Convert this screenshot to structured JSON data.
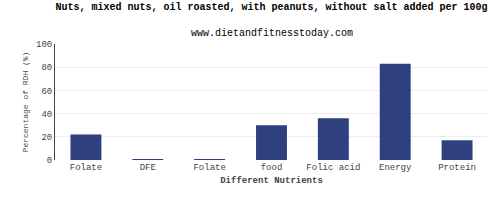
{
  "chart_data": {
    "type": "bar",
    "title": "Nuts, mixed nuts, oil roasted, with peanuts, without salt added per 100g",
    "subtitle": "www.dietandfitnesstoday.com",
    "categories": [
      "Folate",
      "DFE",
      "Folate",
      "food",
      "Folic acid",
      "Energy",
      "Protein"
    ],
    "values": [
      22,
      0.5,
      0.5,
      30,
      36,
      83,
      17
    ],
    "color": "#2e4080",
    "xlabel": "Different Nutrients",
    "ylabel": "Percentage of RDH (%)",
    "ylim": [
      0,
      100
    ],
    "yticks": [
      0,
      20,
      40,
      60,
      80,
      100
    ],
    "grid": true
  }
}
